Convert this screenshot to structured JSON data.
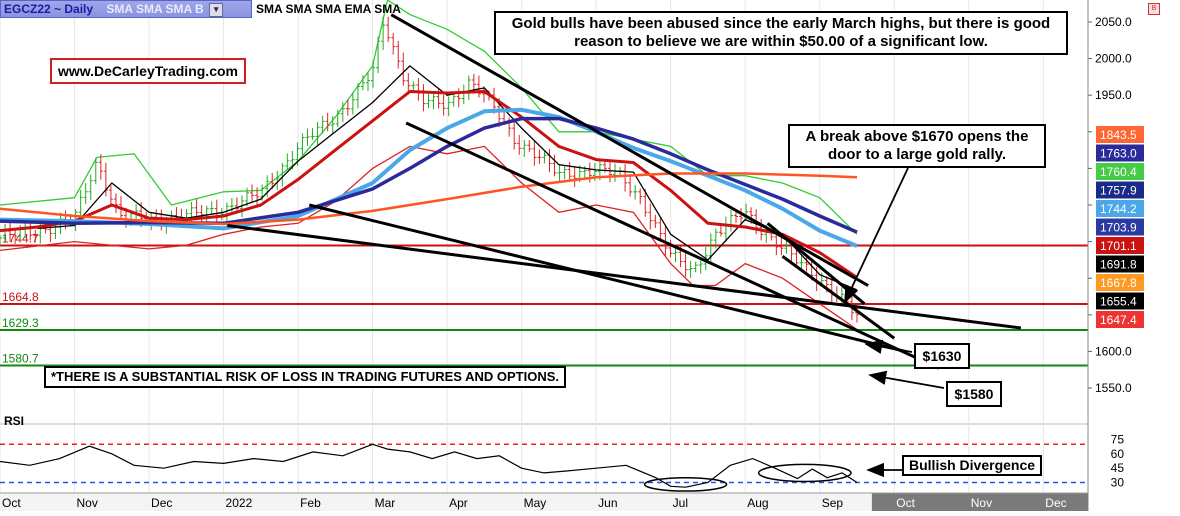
{
  "header": {
    "symbol": "EGCZ22 ~ Daily",
    "studies_dim": "SMA SMA SMA B",
    "studies": "SMA SMA SMA EMA SMA"
  },
  "annotations": {
    "website": "www.DeCarleyTrading.com",
    "note_top": "Gold bulls have been abused since the early March highs, but there is good reason to believe we are within $50.00 of a significant low.",
    "note_break": "A break above $1670 opens the door to a large gold rally.",
    "label_1630": "$1630",
    "label_1580": "$1580",
    "disclaimer": "*THERE IS A SUBSTANTIAL RISK OF LOSS IN TRADING FUTURES AND OPTIONS.",
    "divergence": "Bullish Divergence"
  },
  "colors": {
    "candle_green": "#22aa22",
    "candle_red": "#dd2222",
    "bollinger": "#33cc33",
    "resistance": "#cc1111",
    "support": "#118811",
    "sma_slow": "#ff5522",
    "rsi_upper": "#ee2222",
    "rsi_lower": "#2255ee"
  },
  "chart_data": [
    {
      "type": "line",
      "panel": "price",
      "title": "",
      "xlabel": "",
      "ylabel": "",
      "x_ticks": [
        "Oct",
        "Nov",
        "Dec",
        "2022",
        "Feb",
        "Mar",
        "Apr",
        "May",
        "Jun",
        "Jul",
        "Aug",
        "Sep",
        "Oct",
        "Nov",
        "Dec"
      ],
      "y_ticks": [
        1550.0,
        1600.0,
        1650.0,
        1700.0,
        1750.0,
        1800.0,
        1850.0,
        1900.0,
        1950.0,
        2000.0,
        2050.0
      ],
      "y_tick_labels": [
        "1550.0",
        "1600.0",
        "",
        "",
        "",
        "",
        "",
        "",
        "1950.0",
        "2000.0",
        "2050.0"
      ],
      "ylim": [
        1520,
        2080
      ],
      "x_domain_months": [
        0,
        14.6
      ],
      "price_close": {
        "x": [
          0,
          0.5,
          1.0,
          1.3,
          1.6,
          2.0,
          2.5,
          3.0,
          3.5,
          4.0,
          4.5,
          5.0,
          5.15,
          5.4,
          5.7,
          6.0,
          6.3,
          6.5,
          6.9,
          7.2,
          7.5,
          8.0,
          8.3,
          8.6,
          9.0,
          9.3,
          9.6,
          10.0,
          10.3,
          10.6,
          11.0,
          11.3,
          11.5
        ],
        "y": [
          1755,
          1765,
          1780,
          1860,
          1785,
          1780,
          1785,
          1795,
          1815,
          1880,
          1920,
          1980,
          2050,
          1980,
          1940,
          1935,
          1970,
          1950,
          1890,
          1870,
          1840,
          1850,
          1840,
          1810,
          1730,
          1710,
          1760,
          1790,
          1760,
          1730,
          1700,
          1670,
          1647
        ]
      },
      "series": [
        {
          "name": "",
          "role": "sma_fast",
          "color": "#000000",
          "x": [
            0.5,
            1.0,
            1.5,
            2.0,
            2.5,
            3.0,
            3.5,
            4.0,
            4.5,
            5.0,
            5.5,
            6.0,
            6.5,
            7.0,
            7.5,
            8.0,
            8.5,
            9.0,
            9.5,
            10.0,
            10.5,
            11.0,
            11.5
          ],
          "y": [
            1768,
            1772,
            1830,
            1790,
            1782,
            1790,
            1808,
            1860,
            1900,
            1940,
            1990,
            1950,
            1960,
            1905,
            1855,
            1848,
            1845,
            1760,
            1725,
            1780,
            1760,
            1705,
            1684
          ]
        },
        {
          "name": "",
          "role": "sma_red",
          "color": "#cc1111",
          "x": [
            0,
            0.5,
            1.0,
            1.5,
            2.0,
            2.5,
            3.0,
            3.5,
            4.0,
            4.5,
            5.0,
            5.5,
            6.0,
            6.5,
            7.0,
            7.5,
            8.0,
            8.5,
            9.0,
            9.5,
            10.0,
            10.5,
            11.0,
            11.5
          ],
          "y": [
            1765,
            1770,
            1778,
            1800,
            1782,
            1780,
            1785,
            1800,
            1835,
            1875,
            1915,
            1955,
            1953,
            1955,
            1920,
            1880,
            1862,
            1858,
            1820,
            1775,
            1770,
            1760,
            1735,
            1701
          ]
        },
        {
          "name": "",
          "role": "sma_blue",
          "color": "#4aa8e8",
          "x": [
            0,
            1.0,
            2.0,
            3.0,
            4.0,
            5.0,
            5.5,
            6.0,
            6.5,
            7.0,
            7.5,
            8.0,
            8.5,
            9.0,
            9.5,
            10.0,
            10.5,
            11.0,
            11.5
          ],
          "y": [
            1780,
            1778,
            1774,
            1768,
            1785,
            1830,
            1875,
            1905,
            1928,
            1930,
            1920,
            1900,
            1878,
            1860,
            1840,
            1820,
            1795,
            1765,
            1744
          ]
        },
        {
          "name": "",
          "role": "ema_navy",
          "color": "#2a2a9a",
          "x": [
            0,
            1.0,
            2.0,
            3.0,
            4.0,
            5.0,
            5.5,
            6.0,
            6.5,
            7.0,
            7.5,
            8.0,
            8.5,
            9.0,
            9.5,
            10.0,
            10.5,
            11.0,
            11.5
          ],
          "y": [
            1778,
            1775,
            1776,
            1775,
            1790,
            1822,
            1850,
            1880,
            1905,
            1918,
            1918,
            1905,
            1890,
            1870,
            1848,
            1828,
            1808,
            1785,
            1763
          ]
        },
        {
          "name": "",
          "role": "sma_slow",
          "color": "#ff5522",
          "x": [
            0,
            1.0,
            2.0,
            3.0,
            4.0,
            5.0,
            6.0,
            7.0,
            8.0,
            9.0,
            10.0,
            11.0,
            11.5
          ],
          "y": [
            1795,
            1785,
            1778,
            1774,
            1780,
            1792,
            1808,
            1825,
            1838,
            1843,
            1843,
            1840,
            1838
          ]
        },
        {
          "name": "",
          "role": "bollinger_upper",
          "color": "#33cc33",
          "x": [
            0,
            1.0,
            1.3,
            1.8,
            2.3,
            3.0,
            3.5,
            4.0,
            4.5,
            5.0,
            5.2,
            5.5,
            6.0,
            6.5,
            7.0,
            7.5,
            8.0,
            8.5,
            9.0,
            9.5,
            10.0,
            10.5,
            11.0,
            11.5
          ],
          "y": [
            1800,
            1810,
            1865,
            1870,
            1800,
            1818,
            1820,
            1860,
            1920,
            1990,
            2080,
            2060,
            2040,
            2010,
            1960,
            1900,
            1900,
            1890,
            1880,
            1840,
            1840,
            1830,
            1810,
            1760
          ]
        },
        {
          "name": "",
          "role": "bollinger_lower",
          "color": "#dd2222",
          "x": [
            0,
            1.0,
            2.0,
            2.5,
            3.0,
            3.5,
            4.0,
            4.5,
            5.0,
            5.5,
            6.0,
            6.5,
            7.0,
            7.5,
            8.0,
            8.5,
            9.0,
            9.3,
            9.6,
            10.0,
            10.5,
            11.0,
            11.5
          ],
          "y": [
            1738,
            1750,
            1740,
            1745,
            1760,
            1770,
            1775,
            1805,
            1850,
            1880,
            1870,
            1880,
            1830,
            1790,
            1800,
            1790,
            1720,
            1690,
            1690,
            1720,
            1700,
            1665,
            1630
          ]
        }
      ],
      "horizontal_lines": [
        {
          "value": 1744.7,
          "label": "1744.7",
          "color": "#cc1111"
        },
        {
          "value": 1664.8,
          "label": "1664.8",
          "color": "#cc1111"
        },
        {
          "value": 1629.3,
          "label": "1629.3",
          "color": "#118811"
        },
        {
          "value": 1580.7,
          "label": "1580.7",
          "color": "#118811"
        }
      ],
      "trendlines": [
        {
          "x": [
            3.05,
            13.7
          ],
          "y": [
            1772,
            1632
          ]
        },
        {
          "x": [
            5.25,
            11.65
          ],
          "y": [
            2060,
            1690
          ]
        },
        {
          "x": [
            5.45,
            12.6
          ],
          "y": [
            1912,
            1577
          ]
        },
        {
          "x": [
            4.15,
            12.15
          ],
          "y": [
            1800,
            1600
          ]
        },
        {
          "x": [
            10.5,
            12.0
          ],
          "y": [
            1730,
            1618
          ]
        },
        {
          "x": [
            10.3,
            11.6
          ],
          "y": [
            1775,
            1665
          ]
        }
      ],
      "axis_tags": [
        {
          "value": 1843.5,
          "label": "1843.5",
          "bg": "#ff6633",
          "fg": "#ffffff"
        },
        {
          "value": 1763.0,
          "label": "1763.0",
          "bg": "#2a2a9a",
          "fg": "#ffffff"
        },
        {
          "value": 1760.4,
          "label": "1760.4",
          "bg": "#44cc44",
          "fg": "#ffffff"
        },
        {
          "value": 1757.9,
          "label": "1757.9",
          "bg": "#1a2a88",
          "fg": "#ffffff"
        },
        {
          "value": 1744.2,
          "label": "1744.2",
          "bg": "#4aa8e8",
          "fg": "#ffffff"
        },
        {
          "value": 1703.9,
          "label": "1703.9",
          "bg": "#2a3aa0",
          "fg": "#ffffff"
        },
        {
          "value": 1701.1,
          "label": "1701.1",
          "bg": "#cc1111",
          "fg": "#ffffff"
        },
        {
          "value": 1691.8,
          "label": "1691.8",
          "bg": "#000000",
          "fg": "#ffffff"
        },
        {
          "value": 1667.8,
          "label": "1667.8",
          "bg": "#ff9922",
          "fg": "#ffffff"
        },
        {
          "value": 1655.4,
          "label": "1655.4",
          "bg": "#000000",
          "fg": "#ffffff"
        },
        {
          "value": 1647.4,
          "label": "1647.4",
          "bg": "#ee3333",
          "fg": "#ffffff"
        }
      ]
    },
    {
      "type": "line",
      "panel": "rsi",
      "title": "RSI",
      "y_ticks": [
        30,
        45,
        60,
        75
      ],
      "y_tick_labels": [
        "30",
        "45",
        "60",
        "75"
      ],
      "ylim": [
        20,
        85
      ],
      "x_domain_months": [
        0,
        14.6
      ],
      "levels": [
        {
          "value": 70,
          "color": "#ee2222"
        },
        {
          "value": 30,
          "color": "#2255ee"
        }
      ],
      "series": [
        {
          "name": "",
          "role": "rsi",
          "color": "#000000",
          "x": [
            0,
            0.4,
            0.8,
            1.2,
            1.5,
            1.8,
            2.2,
            2.6,
            3.0,
            3.4,
            3.8,
            4.2,
            4.6,
            5.0,
            5.2,
            5.5,
            5.8,
            6.1,
            6.4,
            6.7,
            7.0,
            7.3,
            7.6,
            8.0,
            8.4,
            8.8,
            9.0,
            9.2,
            9.5,
            9.8,
            10.1,
            10.4,
            10.7,
            10.9,
            11.1,
            11.3,
            11.5
          ],
          "y": [
            52,
            48,
            55,
            68,
            60,
            48,
            45,
            52,
            50,
            55,
            52,
            62,
            58,
            70,
            65,
            62,
            55,
            62,
            55,
            58,
            45,
            40,
            42,
            45,
            48,
            35,
            26,
            25,
            30,
            48,
            55,
            45,
            34,
            44,
            35,
            40,
            30
          ]
        }
      ],
      "ellipses": [
        {
          "cx": 9.2,
          "cy": 28,
          "rx": 0.55,
          "ry": 7
        },
        {
          "cx": 10.8,
          "cy": 40,
          "rx": 0.62,
          "ry": 9
        }
      ]
    }
  ]
}
